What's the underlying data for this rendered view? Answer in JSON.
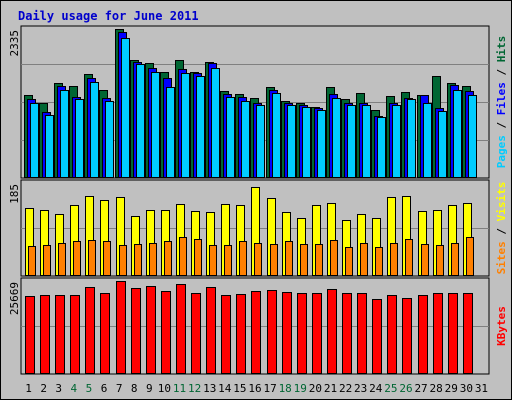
{
  "title": "Daily usage for June 2011",
  "colors": {
    "frame_bg": "#c0c0c0",
    "plot_bg": "#c0c0c0",
    "title": "#0000cc",
    "hits": "#006633",
    "files": "#0000ff",
    "pages": "#00ccff",
    "visits": "#ffff00",
    "sites": "#ff8000",
    "kbytes": "#ff0000",
    "weekend_tick": "#006633",
    "weekday_tick": "#000000"
  },
  "chart_data": [
    {
      "type": "bar",
      "panel": "hits-files-pages",
      "ymax": 2335,
      "ymax_label": "2335",
      "ylabel_parts": [
        {
          "text": "Pages",
          "color": "#00ccff"
        },
        {
          "text": " / ",
          "color": "#000000"
        },
        {
          "text": "Files",
          "color": "#0000ff"
        },
        {
          "text": " / ",
          "color": "#000000"
        },
        {
          "text": "Hits",
          "color": "#006633"
        }
      ],
      "categories": [
        "1",
        "2",
        "3",
        "4",
        "5",
        "6",
        "7",
        "8",
        "9",
        "10",
        "11",
        "12",
        "13",
        "14",
        "15",
        "16",
        "17",
        "18",
        "19",
        "20",
        "21",
        "22",
        "23",
        "24",
        "25",
        "26",
        "27",
        "28",
        "29",
        "30",
        "31"
      ],
      "series": [
        {
          "name": "Hits",
          "values": [
            1290,
            1160,
            1480,
            1430,
            1620,
            1380,
            2330,
            1850,
            1800,
            1650,
            1850,
            1650,
            1820,
            1360,
            1310,
            1250,
            1420,
            1200,
            1170,
            1110,
            1420,
            1230,
            1330,
            1050,
            1280,
            1340,
            1300,
            1600,
            1490,
            1430,
            0
          ]
        },
        {
          "name": "Files",
          "values": [
            1230,
            1020,
            1430,
            1270,
            1560,
            1240,
            2290,
            1820,
            1720,
            1560,
            1700,
            1640,
            1800,
            1310,
            1260,
            1170,
            1370,
            1160,
            1140,
            1090,
            1310,
            1160,
            1170,
            970,
            1160,
            1250,
            1290,
            1090,
            1450,
            1360,
            0
          ]
        },
        {
          "name": "Pages",
          "values": [
            1170,
            980,
            1370,
            1230,
            1500,
            1200,
            2200,
            1780,
            1660,
            1420,
            1640,
            1590,
            1720,
            1270,
            1200,
            1130,
            1320,
            1130,
            1100,
            1060,
            1250,
            1130,
            1130,
            950,
            1130,
            1230,
            1160,
            1040,
            1370,
            1300,
            0
          ]
        }
      ]
    },
    {
      "type": "bar",
      "panel": "visits-sites",
      "ymax": 185,
      "ymax_label": "185",
      "ylabel_parts": [
        {
          "text": "Sites",
          "color": "#ff8000"
        },
        {
          "text": " / ",
          "color": "#000000"
        },
        {
          "text": "Visits",
          "color": "#ffff00"
        }
      ],
      "categories": [
        "1",
        "2",
        "3",
        "4",
        "5",
        "6",
        "7",
        "8",
        "9",
        "10",
        "11",
        "12",
        "13",
        "14",
        "15",
        "16",
        "17",
        "18",
        "19",
        "20",
        "21",
        "22",
        "23",
        "24",
        "25",
        "26",
        "27",
        "28",
        "29",
        "30",
        "31"
      ],
      "series": [
        {
          "name": "Visits",
          "values": [
            135,
            130,
            122,
            140,
            159,
            150,
            156,
            119,
            130,
            130,
            142,
            128,
            126,
            142,
            140,
            176,
            155,
            126,
            115,
            140,
            145,
            111,
            122,
            115,
            156,
            158,
            128,
            131,
            141,
            144,
            0
          ]
        },
        {
          "name": "Sites",
          "values": [
            59,
            60,
            64,
            69,
            71,
            69,
            61,
            63,
            64,
            68,
            77,
            72,
            61,
            60,
            69,
            65,
            63,
            69,
            63,
            63,
            71,
            56,
            64,
            56,
            65,
            73,
            63,
            60,
            64,
            77,
            0
          ]
        }
      ]
    },
    {
      "type": "bar",
      "panel": "kbytes",
      "ymax": 25669,
      "ymax_label": "25669",
      "ylabel_parts": [
        {
          "text": "KBytes",
          "color": "#ff0000"
        }
      ],
      "categories": [
        "1",
        "2",
        "3",
        "4",
        "5",
        "6",
        "7",
        "8",
        "9",
        "10",
        "11",
        "12",
        "13",
        "14",
        "15",
        "16",
        "17",
        "18",
        "19",
        "20",
        "21",
        "22",
        "23",
        "24",
        "25",
        "26",
        "27",
        "28",
        "29",
        "30",
        "31"
      ],
      "series": [
        {
          "name": "KBytes",
          "values": [
            21500,
            21800,
            21900,
            21900,
            24000,
            22300,
            25600,
            23800,
            24200,
            23000,
            24800,
            22300,
            24000,
            21900,
            22000,
            22800,
            23200,
            22500,
            22200,
            22300,
            23400,
            22400,
            22400,
            20600,
            21700,
            20800,
            21800,
            22200,
            22200,
            22200,
            0
          ]
        }
      ]
    }
  ],
  "weekend_days": [
    4,
    5,
    11,
    12,
    18,
    19,
    25,
    26
  ]
}
